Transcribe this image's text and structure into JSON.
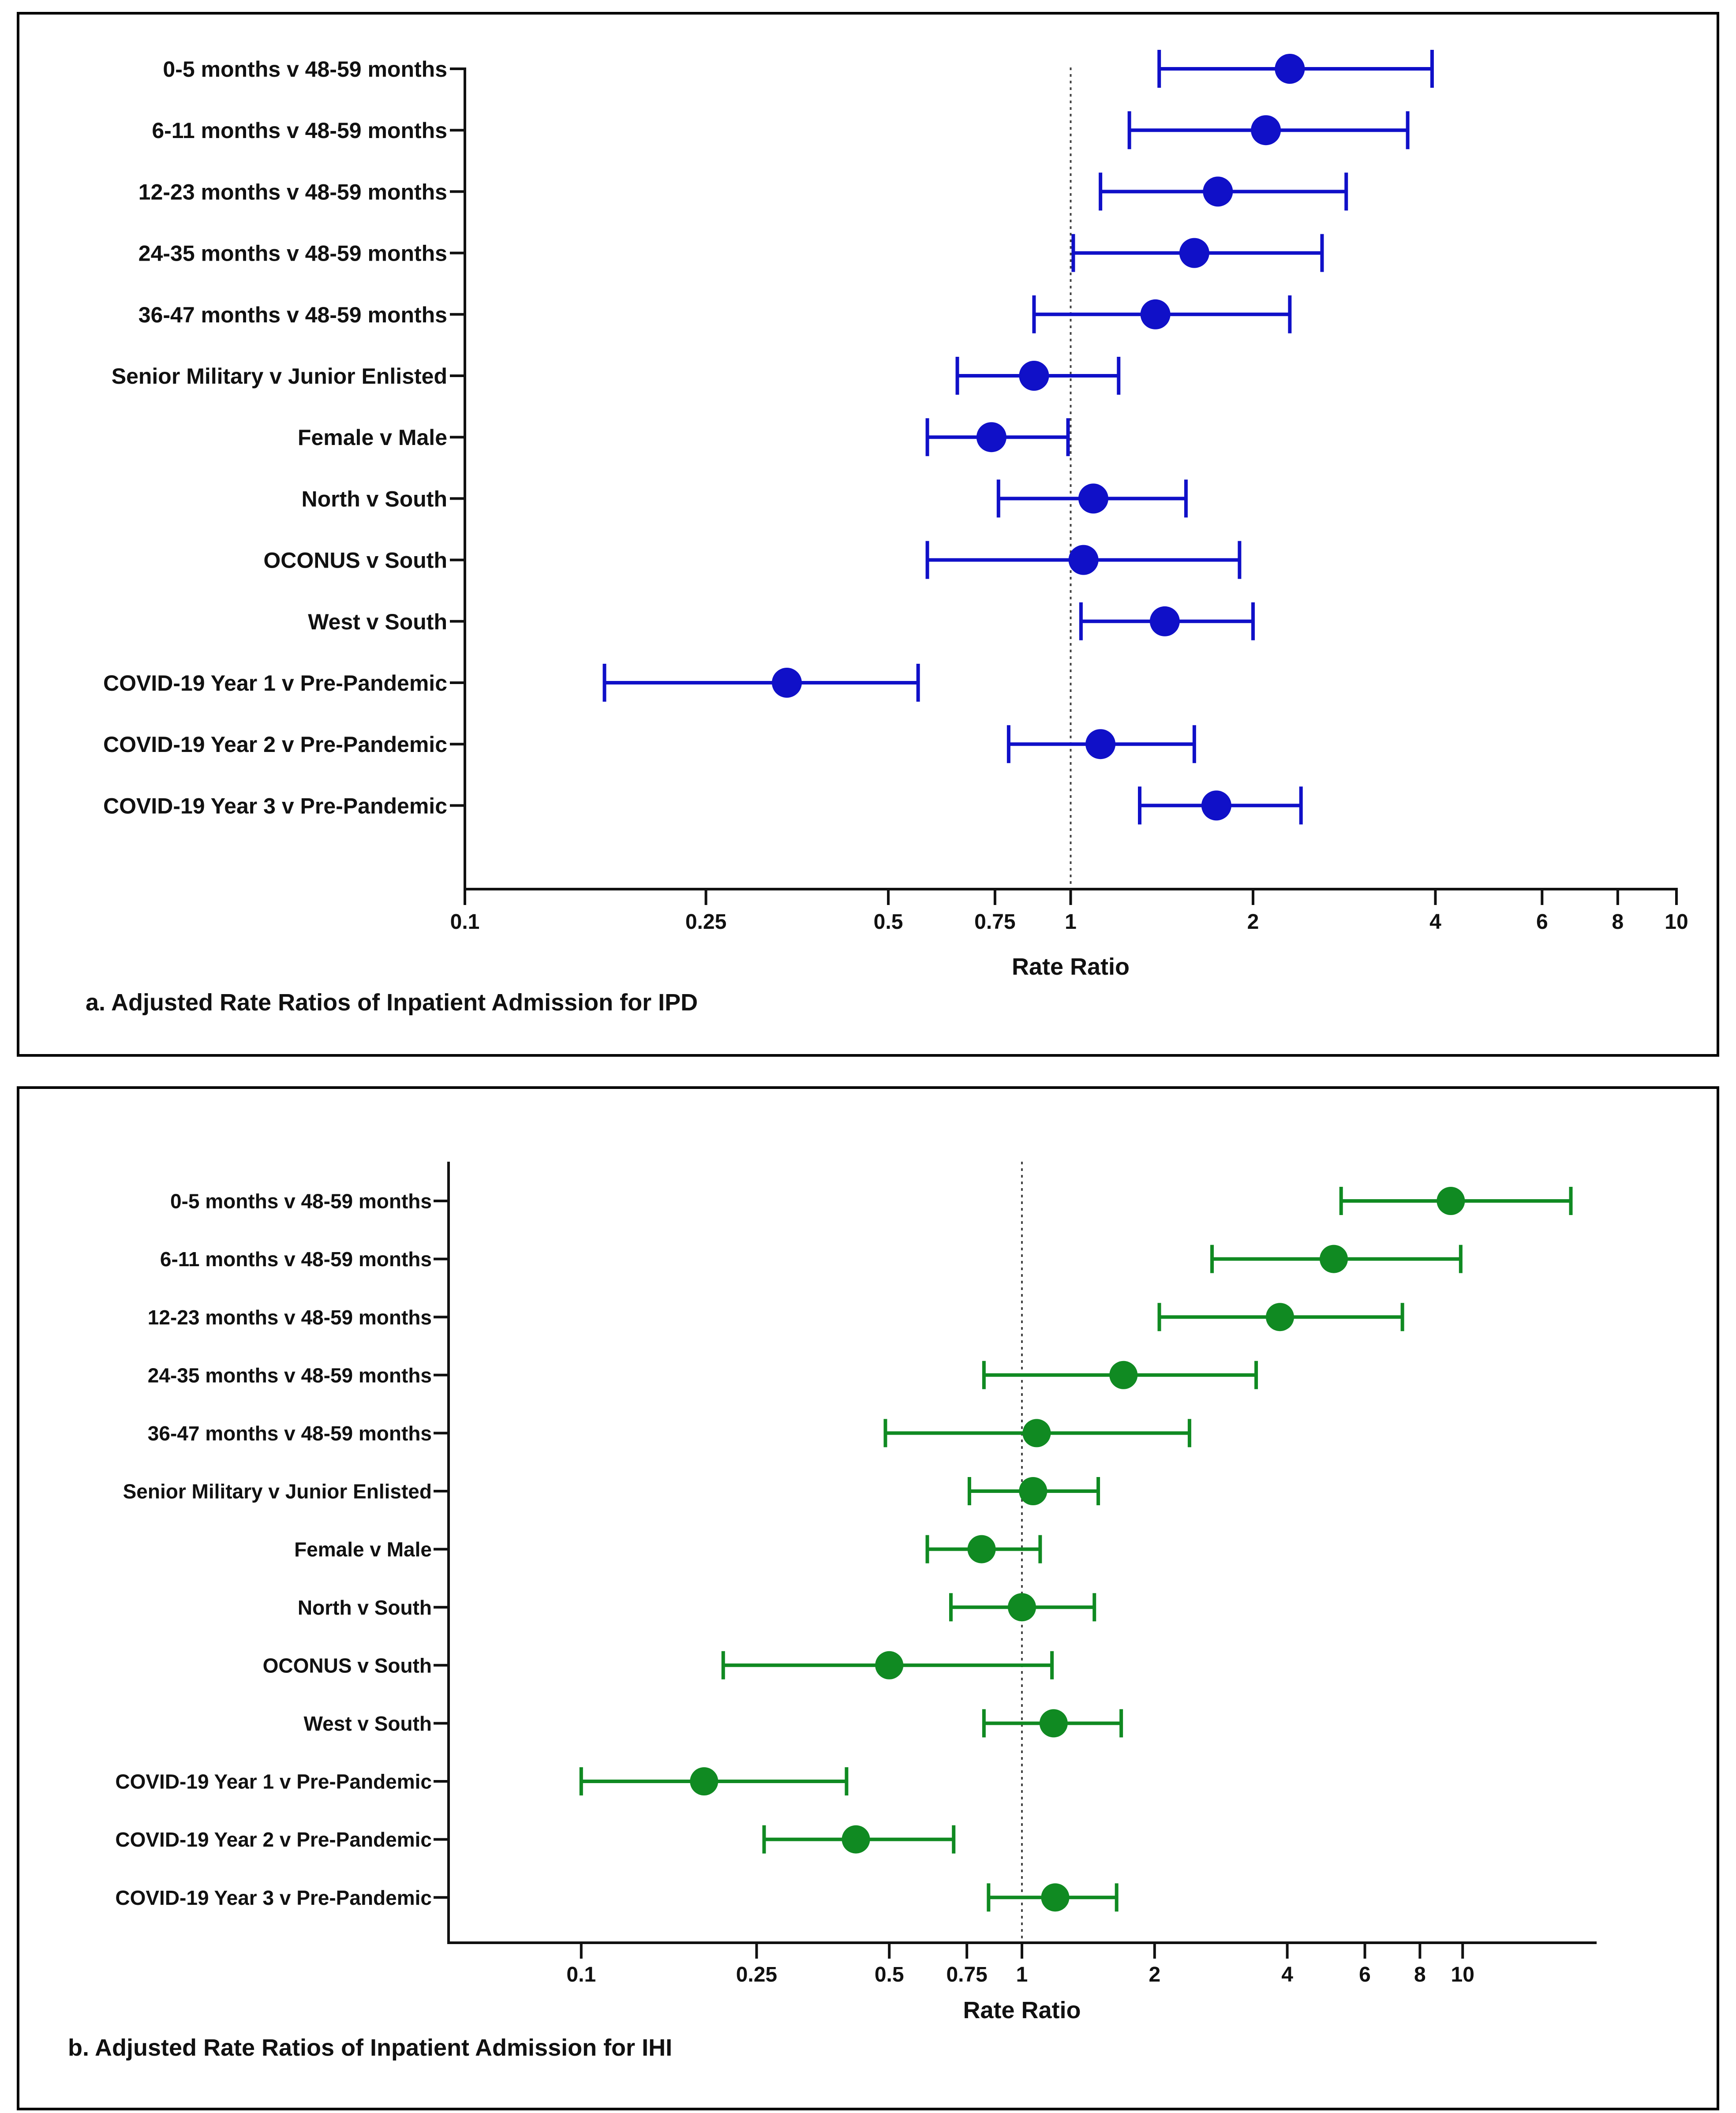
{
  "chart_data": [
    {
      "type": "forest",
      "title": "",
      "caption": "a. Adjusted Rate Ratios of Inpatient Admission for IPD",
      "xlabel": "Rate Ratio",
      "xscale": "log",
      "xlim": [
        0.1,
        10
      ],
      "xticks": [
        0.1,
        0.25,
        0.5,
        0.75,
        1,
        2,
        4,
        6,
        8,
        10
      ],
      "xtick_labels": [
        "0.1",
        "0.25",
        "0.5",
        "0.75",
        "1",
        "2",
        "4",
        "6",
        "8",
        "10"
      ],
      "reference_line": 1,
      "color": "#1010c8",
      "categories": [
        "0-5 months v 48-59 months",
        "6-11 months v 48-59 months",
        "12-23 months v 48-59 months",
        "24-35 months v 48-59 months",
        "36-47 months v 48-59 months",
        "Senior Military v Junior Enlisted",
        "Female v Male",
        "North v South",
        "OCONUS v South",
        "West v South",
        "COVID-19 Year 1 v Pre-Pandemic",
        "COVID-19 Year 2 v Pre-Pandemic",
        "COVID-19 Year 3 v Pre-Pandemic"
      ],
      "estimates": [
        2.3,
        2.1,
        1.75,
        1.6,
        1.38,
        0.87,
        0.74,
        1.09,
        1.05,
        1.43,
        0.34,
        1.12,
        1.74
      ],
      "lower": [
        1.4,
        1.25,
        1.12,
        1.01,
        0.87,
        0.65,
        0.58,
        0.76,
        0.58,
        1.04,
        0.17,
        0.79,
        1.3
      ],
      "upper": [
        3.95,
        3.6,
        2.85,
        2.6,
        2.3,
        1.2,
        0.99,
        1.55,
        1.9,
        2.0,
        0.56,
        1.6,
        2.4
      ]
    },
    {
      "type": "forest",
      "title": "",
      "caption": "b. Adjusted Rate Ratios of Inpatient Admission for IHI",
      "xlabel": "Rate Ratio",
      "xscale": "log",
      "xlim": [
        0.05,
        20
      ],
      "xticks": [
        0.1,
        0.25,
        0.5,
        0.75,
        1,
        2,
        4,
        6,
        8,
        10
      ],
      "xtick_labels": [
        "0.1",
        "0.25",
        "0.5",
        "0.75",
        "1",
        "2",
        "4",
        "6",
        "8",
        "10"
      ],
      "reference_line": 1,
      "color": "#108a22",
      "categories": [
        "0-5 months v 48-59 months",
        "6-11 months v 48-59 months",
        "12-23 months v 48-59 months",
        "24-35 months v 48-59 months",
        "36-47 months v 48-59 months",
        "Senior Military v Junior Enlisted",
        "Female v Male",
        "North v South",
        "OCONUS v South",
        "West v South",
        "COVID-19 Year 1 v Pre-Pandemic",
        "COVID-19 Year 2 v Pre-Pandemic",
        "COVID-19 Year 3 v Pre-Pandemic"
      ],
      "estimates": [
        9.4,
        5.1,
        3.85,
        1.7,
        1.08,
        1.06,
        0.81,
        1.0,
        0.5,
        1.18,
        0.19,
        0.42,
        1.19
      ],
      "lower": [
        5.3,
        2.7,
        2.05,
        0.82,
        0.49,
        0.76,
        0.61,
        0.69,
        0.21,
        0.82,
        0.1,
        0.26,
        0.84
      ],
      "upper": [
        17.6,
        9.9,
        7.3,
        3.4,
        2.4,
        1.49,
        1.1,
        1.46,
        1.17,
        1.68,
        0.4,
        0.7,
        1.64
      ]
    }
  ]
}
